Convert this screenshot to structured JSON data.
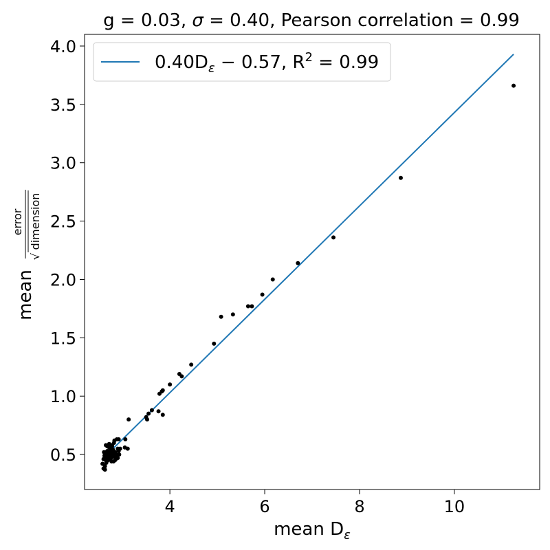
{
  "chart_data": {
    "type": "scatter",
    "title": "g = 0.03, σ = 0.40, Pearson correlation = 0.99",
    "title_parts": {
      "prefix": "g = 0.03, ",
      "sigma": "σ",
      "suffix": " = 0.40, Pearson correlation = 0.99"
    },
    "xlabel": "mean D",
    "xlabel_sub": "ε",
    "ylabel": "mean",
    "ylabel_num": "error",
    "ylabel_den": "dimension",
    "ylabel_root": "√",
    "xlim": [
      2.2,
      11.8
    ],
    "ylim": [
      0.2,
      4.1
    ],
    "xticks": [
      4,
      6,
      8,
      10
    ],
    "yticks": [
      0.5,
      1.0,
      1.5,
      2.0,
      2.5,
      3.0,
      3.5,
      4.0
    ],
    "xtick_labels": [
      "4",
      "6",
      "8",
      "10"
    ],
    "ytick_labels": [
      "0.5",
      "1.0",
      "1.5",
      "2.0",
      "2.5",
      "3.0",
      "3.5",
      "4.0"
    ],
    "grid": false,
    "legend_position": "top-left",
    "legend": {
      "fit_label": "0.40D",
      "fit_sub": "ε",
      "fit_mid": " − 0.57, R",
      "fit_sup": "2",
      "fit_end": " = 0.99"
    },
    "colors": {
      "points": "#000000",
      "fit_line": "#1f77b4"
    },
    "fit": {
      "slope": 0.4,
      "intercept": -0.57,
      "x_range": [
        2.62,
        11.25
      ]
    },
    "points": {
      "x": [
        11.25,
        8.87,
        7.45,
        6.7,
        6.17,
        5.95,
        5.73,
        5.65,
        5.33,
        5.08,
        4.93,
        4.45,
        4.25,
        4.2,
        4.0,
        3.85,
        3.83,
        3.78,
        3.85,
        3.76,
        3.62,
        3.55,
        3.52,
        3.5,
        3.13,
        3.06,
        3.05,
        3.11,
        2.92,
        2.88,
        2.83,
        2.82,
        2.78,
        2.72,
        2.68,
        2.65,
        2.62,
        2.6,
        2.58,
        2.62,
        2.63,
        2.65,
        2.68,
        2.7,
        2.73,
        2.75,
        2.78,
        2.8,
        2.83,
        2.86,
        2.9,
        2.93,
        2.95,
        2.68,
        2.72,
        2.75,
        2.62,
        2.64,
        2.66,
        2.69,
        2.71,
        2.74,
        2.77,
        2.79,
        2.82,
        2.84,
        2.87,
        2.63,
        2.66,
        2.7,
        2.73,
        2.76,
        2.8,
        2.85,
        2.9,
        2.78,
        2.81,
        2.88,
        2.6,
        2.58,
        2.61,
        2.92
      ],
      "y": [
        3.66,
        2.87,
        2.36,
        2.14,
        2.0,
        1.87,
        1.77,
        1.77,
        1.7,
        1.68,
        1.45,
        1.27,
        1.17,
        1.19,
        1.1,
        1.05,
        1.04,
        1.02,
        0.84,
        0.87,
        0.88,
        0.85,
        0.8,
        0.82,
        0.8,
        0.63,
        0.56,
        0.55,
        0.63,
        0.63,
        0.62,
        0.6,
        0.58,
        0.59,
        0.57,
        0.58,
        0.49,
        0.46,
        0.42,
        0.38,
        0.37,
        0.45,
        0.48,
        0.5,
        0.52,
        0.55,
        0.53,
        0.5,
        0.48,
        0.46,
        0.47,
        0.5,
        0.55,
        0.53,
        0.56,
        0.51,
        0.47,
        0.5,
        0.52,
        0.45,
        0.48,
        0.46,
        0.44,
        0.49,
        0.52,
        0.45,
        0.5,
        0.4,
        0.43,
        0.47,
        0.49,
        0.47,
        0.54,
        0.52,
        0.55,
        0.57,
        0.44,
        0.48,
        0.38,
        0.42,
        0.52,
        0.53
      ]
    }
  }
}
